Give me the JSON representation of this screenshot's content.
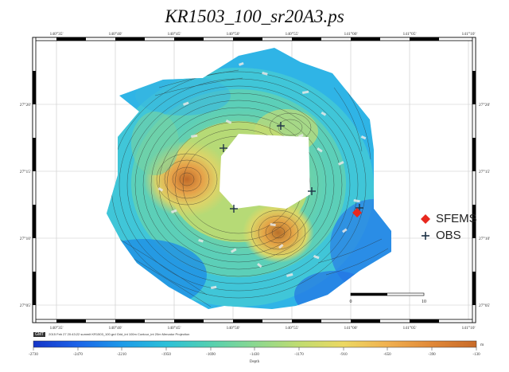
{
  "title": "KR1503_100_sr20A3.ps",
  "axes": {
    "lon_ticks": [
      "140°35'",
      "140°40'",
      "140°45'",
      "140°50'",
      "140°55'",
      "141°00'",
      "141°05'",
      "141°10'"
    ],
    "lat_ticks": [
      "27°20'",
      "27°15'",
      "27°10'",
      "27°05'"
    ]
  },
  "legend": {
    "items": [
      {
        "label": "SFEMS",
        "color": "#e8281e",
        "icon": "red-diamond-marker"
      },
      {
        "label": "OBS",
        "color": "#1e3246",
        "icon": "dark-cross-marker"
      }
    ]
  },
  "scale_bar": {
    "labels": [
      "0",
      "10"
    ]
  },
  "footer": {
    "logo": "GMT",
    "caption": "2015 Feb 27 20:43:22   summit KR1503_100.grd Grid_int 100m Contour_int 20m  Mercator Projection"
  },
  "colorbar": {
    "ticks": [
      "-2730",
      "-2470",
      "-2210",
      "-1950",
      "-1690",
      "-1430",
      "-1170",
      "-910",
      "-650",
      "-390",
      "-130"
    ],
    "unit": "m",
    "label": "Depth",
    "colors": [
      "#1535c8",
      "#1c64e8",
      "#1d9ae8",
      "#2bc0d8",
      "#55d0b0",
      "#8bd890",
      "#c0dc70",
      "#ecd862",
      "#f0b050",
      "#e08838",
      "#c86a28"
    ]
  }
}
